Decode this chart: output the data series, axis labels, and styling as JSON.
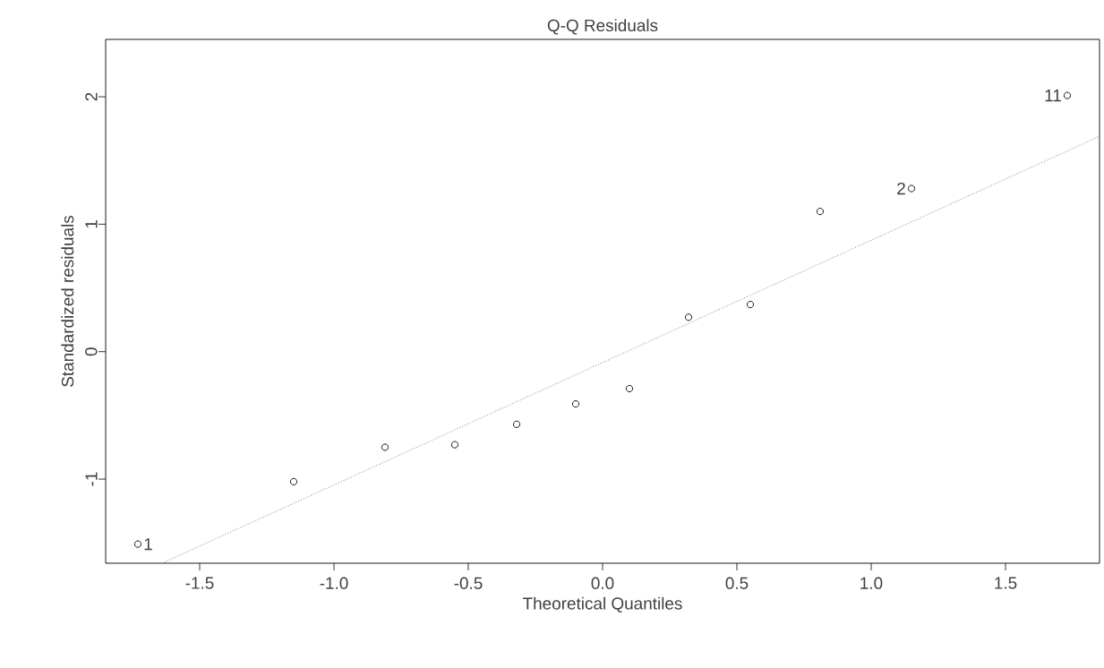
{
  "chart_data": {
    "type": "scatter",
    "title": "Q-Q Residuals",
    "xlabel": "Theoretical Quantiles",
    "ylabel": "Standardized residuals",
    "xlim": [
      -1.85,
      1.85
    ],
    "ylim": [
      -1.66,
      2.45
    ],
    "xticks": [
      {
        "value": -1.5,
        "label": "-1.5"
      },
      {
        "value": -1.0,
        "label": "-1.0"
      },
      {
        "value": -0.5,
        "label": "-0.5"
      },
      {
        "value": 0.0,
        "label": "0.0"
      },
      {
        "value": 0.5,
        "label": "0.5"
      },
      {
        "value": 1.0,
        "label": "1.0"
      },
      {
        "value": 1.5,
        "label": "1.5"
      }
    ],
    "yticks": [
      -1,
      0,
      1,
      2
    ],
    "grid": false,
    "series": [
      {
        "marker": "circle",
        "color": "#000000",
        "x": [
          -1.73,
          -1.15,
          -0.81,
          -0.55,
          -0.32,
          -0.1,
          0.1,
          0.32,
          0.55,
          0.81,
          1.15,
          1.73
        ],
        "values": [
          -1.51,
          -1.02,
          -0.75,
          -0.73,
          -0.57,
          -0.41,
          -0.29,
          0.27,
          0.37,
          1.1,
          1.28,
          2.01
        ]
      },
      {
        "type": "line",
        "marker": "none",
        "line_style": "dotted",
        "color": "#999999",
        "x": [
          -1.64,
          1.85
        ],
        "values": [
          -1.66,
          1.69
        ]
      }
    ],
    "annotations": [
      {
        "text": "1",
        "x": -1.73,
        "y": -1.51
      },
      {
        "text": "2",
        "x": 1.15,
        "y": 1.28
      },
      {
        "text": "11",
        "x": 1.73,
        "y": 2.01
      }
    ]
  }
}
